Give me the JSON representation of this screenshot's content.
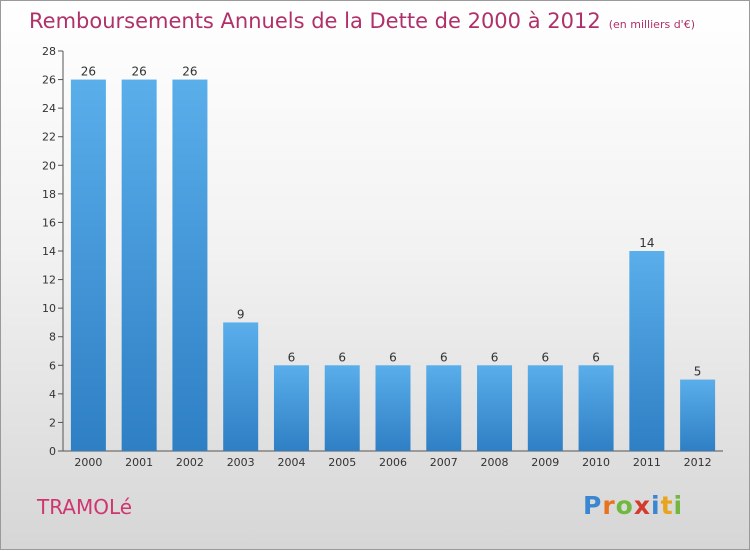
{
  "header": {
    "title": "Remboursements Annuels de la Dette de 2000 à 2012",
    "subtitle": "(en milliers d'€)"
  },
  "footer": {
    "town": "TRAMOLé",
    "logo_text": "Proxiti"
  },
  "colors": {
    "title": "#b0306a",
    "bar_top": "#5aaeea",
    "bar_bottom": "#2e7fc4"
  },
  "chart_data": {
    "type": "bar",
    "title": "Remboursements Annuels de la Dette de 2000 à 2012",
    "subtitle": "(en milliers d'€)",
    "categories": [
      "2000",
      "2001",
      "2002",
      "2003",
      "2004",
      "2005",
      "2006",
      "2007",
      "2008",
      "2009",
      "2010",
      "2011",
      "2012"
    ],
    "values": [
      26,
      26,
      26,
      9,
      6,
      6,
      6,
      6,
      6,
      6,
      6,
      14,
      5
    ],
    "ylim": [
      0,
      28
    ],
    "yticks": [
      0,
      2,
      4,
      6,
      8,
      10,
      12,
      14,
      16,
      18,
      20,
      22,
      24,
      26,
      28
    ],
    "grid": false,
    "data_labels": true
  }
}
